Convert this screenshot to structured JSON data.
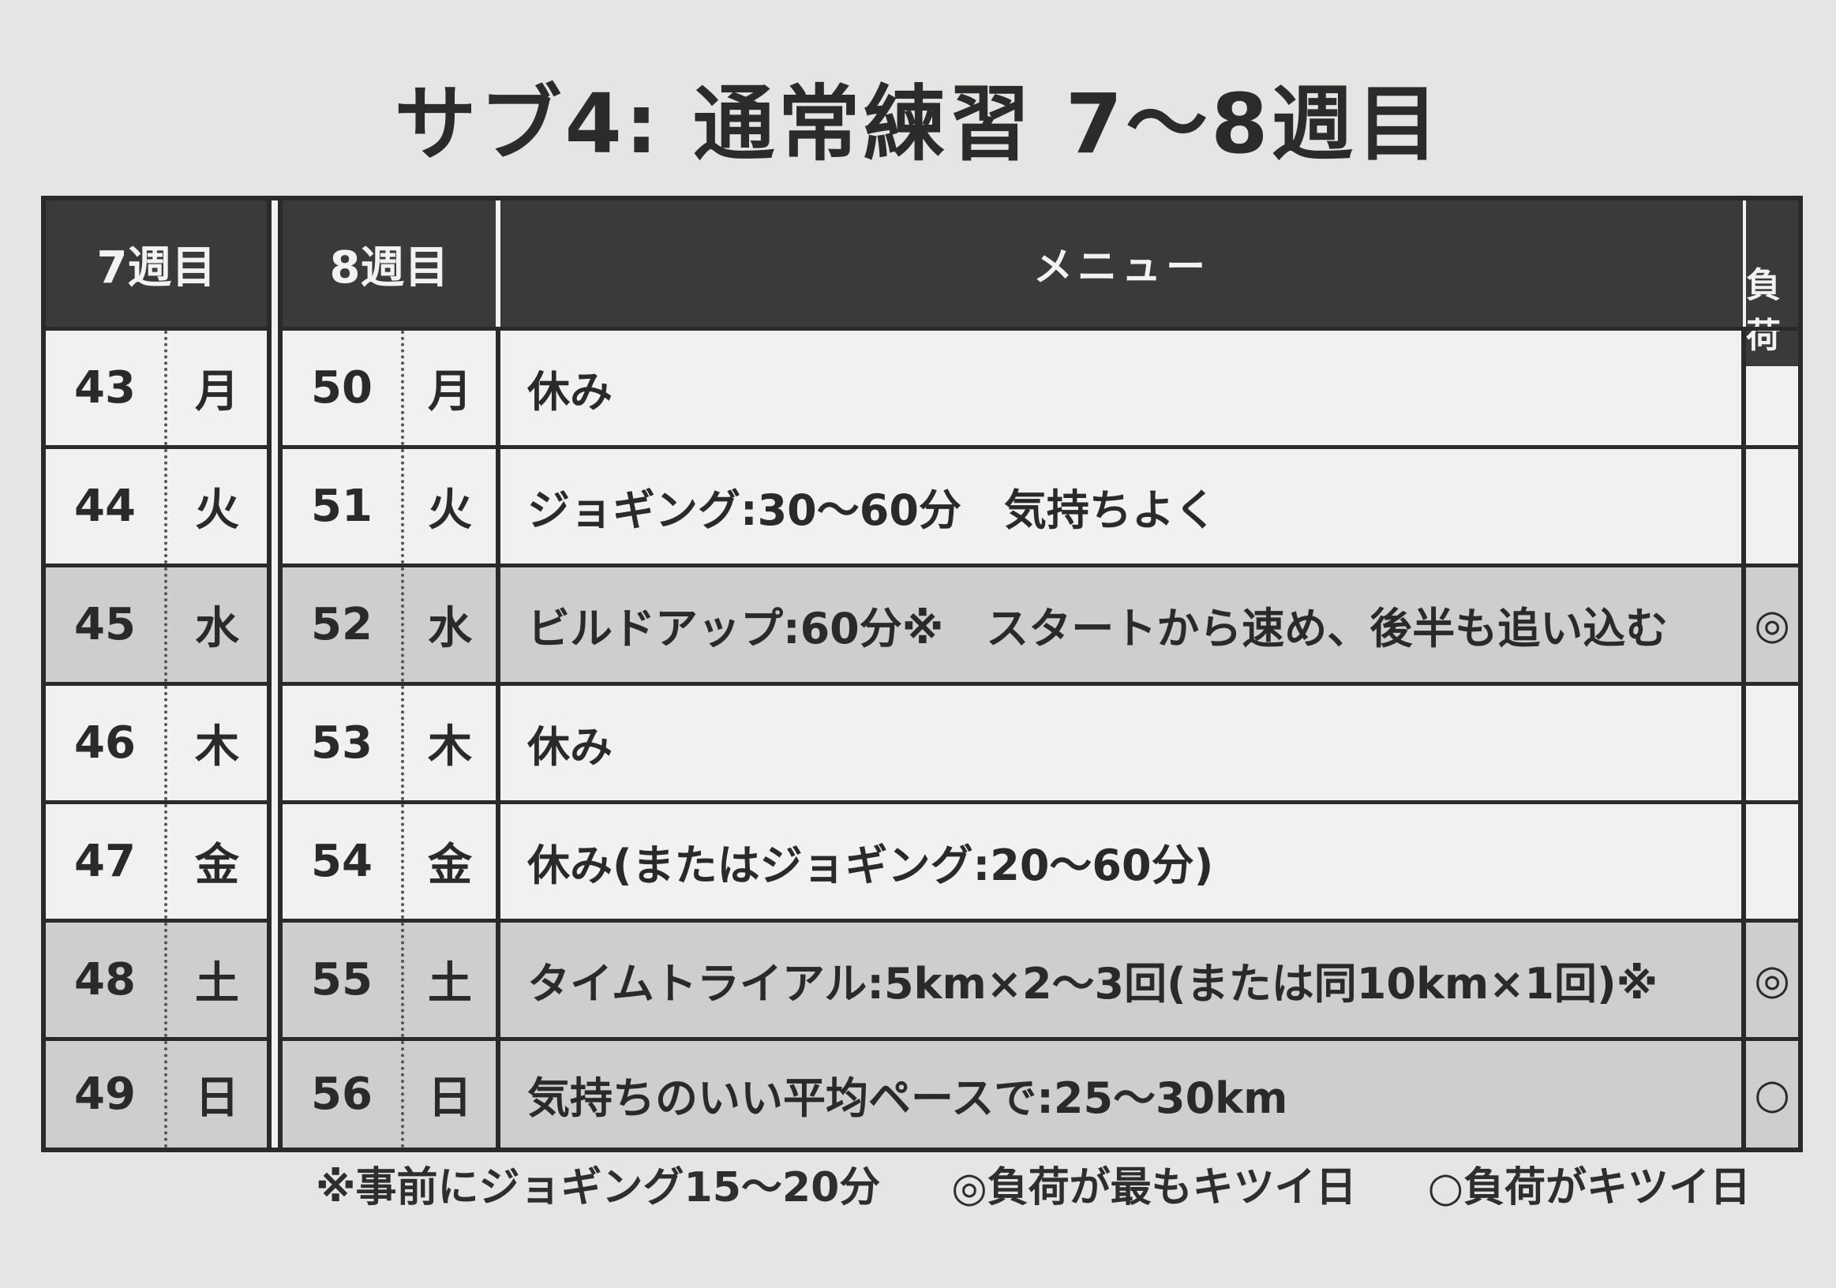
{
  "title": "サブ4: 通常練習 7〜8週目",
  "header": {
    "week7": "7週目",
    "week8": "8週目",
    "menu": "メニュー",
    "load": "負荷"
  },
  "rows": [
    {
      "d7": "43",
      "w7": "月",
      "d8": "50",
      "w8": "月",
      "menu": "休み",
      "load": ""
    },
    {
      "d7": "44",
      "w7": "火",
      "d8": "51",
      "w8": "火",
      "menu": "ジョギング:30〜60分　気持ちよく",
      "load": ""
    },
    {
      "d7": "45",
      "w7": "水",
      "d8": "52",
      "w8": "水",
      "menu": "ビルドアップ:60分※　スタートから速め、後半も追い込む",
      "load": "◎"
    },
    {
      "d7": "46",
      "w7": "木",
      "d8": "53",
      "w8": "木",
      "menu": "休み",
      "load": ""
    },
    {
      "d7": "47",
      "w7": "金",
      "d8": "54",
      "w8": "金",
      "menu": "休み(またはジョギング:20〜60分)",
      "load": ""
    },
    {
      "d7": "48",
      "w7": "土",
      "d8": "55",
      "w8": "土",
      "menu": "タイムトライアル:5km×2〜3回(または同10km×1回)※",
      "load": "◎"
    },
    {
      "d7": "49",
      "w7": "日",
      "d8": "56",
      "w8": "日",
      "menu": "気持ちのいい平均ペースで:25〜30km",
      "load": "○"
    }
  ],
  "footnotes": {
    "jog": "※事前にジョギング15〜20分",
    "hardest": "◎負荷が最もキツイ日",
    "hard": "○負荷がキツイ日"
  }
}
